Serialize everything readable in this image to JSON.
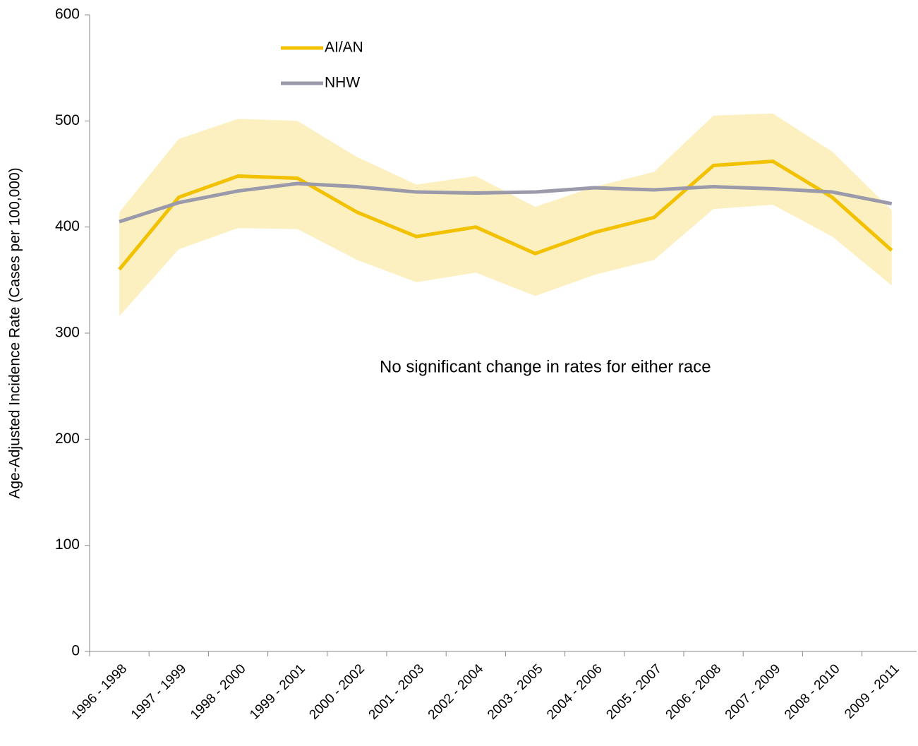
{
  "chart_data": {
    "type": "line",
    "ylabel": "Age-Adjusted Incidence Rate (Cases per 100,000)",
    "annotation": "No significant change in rates for either race",
    "categories": [
      "1996 - 1998",
      "1997 - 1999",
      "1998 - 2000",
      "1999 - 2001",
      "2000 - 2002",
      "2001 - 2003",
      "2002 - 2004",
      "2003 - 2005",
      "2004 - 2006",
      "2005 - 2007",
      "2006 - 2008",
      "2007 - 2009",
      "2008 - 2010",
      "2009 - 2011"
    ],
    "series": [
      {
        "name": "AI/AN",
        "color": "#f2c100",
        "values": [
          360,
          428,
          448,
          446,
          414,
          391,
          400,
          375,
          395,
          409,
          458,
          462,
          428,
          378
        ]
      },
      {
        "name": "NHW",
        "color": "#9a9aaa",
        "values": [
          405,
          423,
          434,
          441,
          438,
          433,
          432,
          433,
          437,
          435,
          438,
          436,
          433,
          422
        ]
      }
    ],
    "ci": {
      "color": "#fdf0c0",
      "lower": [
        316,
        379,
        399,
        398,
        369,
        348,
        357,
        335,
        355,
        369,
        417,
        421,
        391,
        345
      ],
      "upper": [
        414,
        483,
        502,
        500,
        466,
        440,
        448,
        419,
        438,
        452,
        505,
        507,
        471,
        416
      ]
    },
    "ylim": [
      0,
      600
    ],
    "yticks": [
      0,
      100,
      200,
      300,
      400,
      500,
      600
    ]
  }
}
